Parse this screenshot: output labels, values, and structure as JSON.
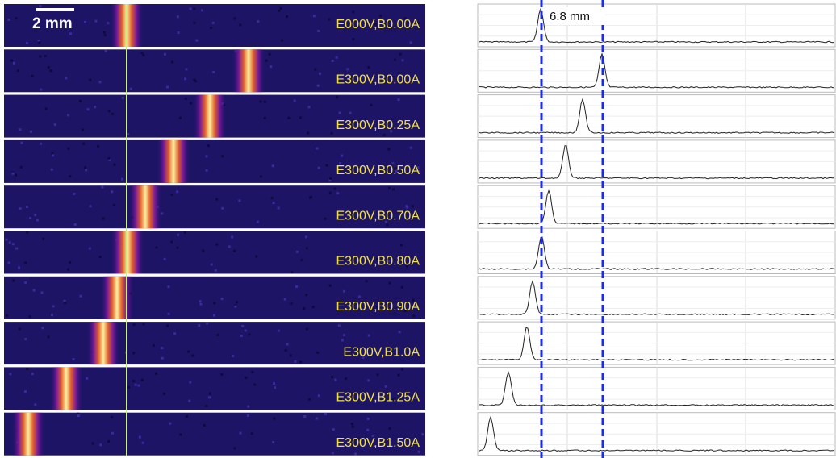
{
  "scale_bar": {
    "label": "2 mm"
  },
  "annotation": "6.8 mm",
  "rows": [
    {
      "label": "E000V,B0.00A"
    },
    {
      "label": "E300V,B0.00A"
    },
    {
      "label": "E300V,B0.25A"
    },
    {
      "label": "E300V,B0.50A"
    },
    {
      "label": "E300V,B0.70A"
    },
    {
      "label": "E300V,B0.80A"
    },
    {
      "label": "E300V,B0.90A"
    },
    {
      "label": "E300V,B1.0A"
    },
    {
      "label": "E300V,B1.25A"
    },
    {
      "label": "E300V,B1.50A"
    }
  ]
}
